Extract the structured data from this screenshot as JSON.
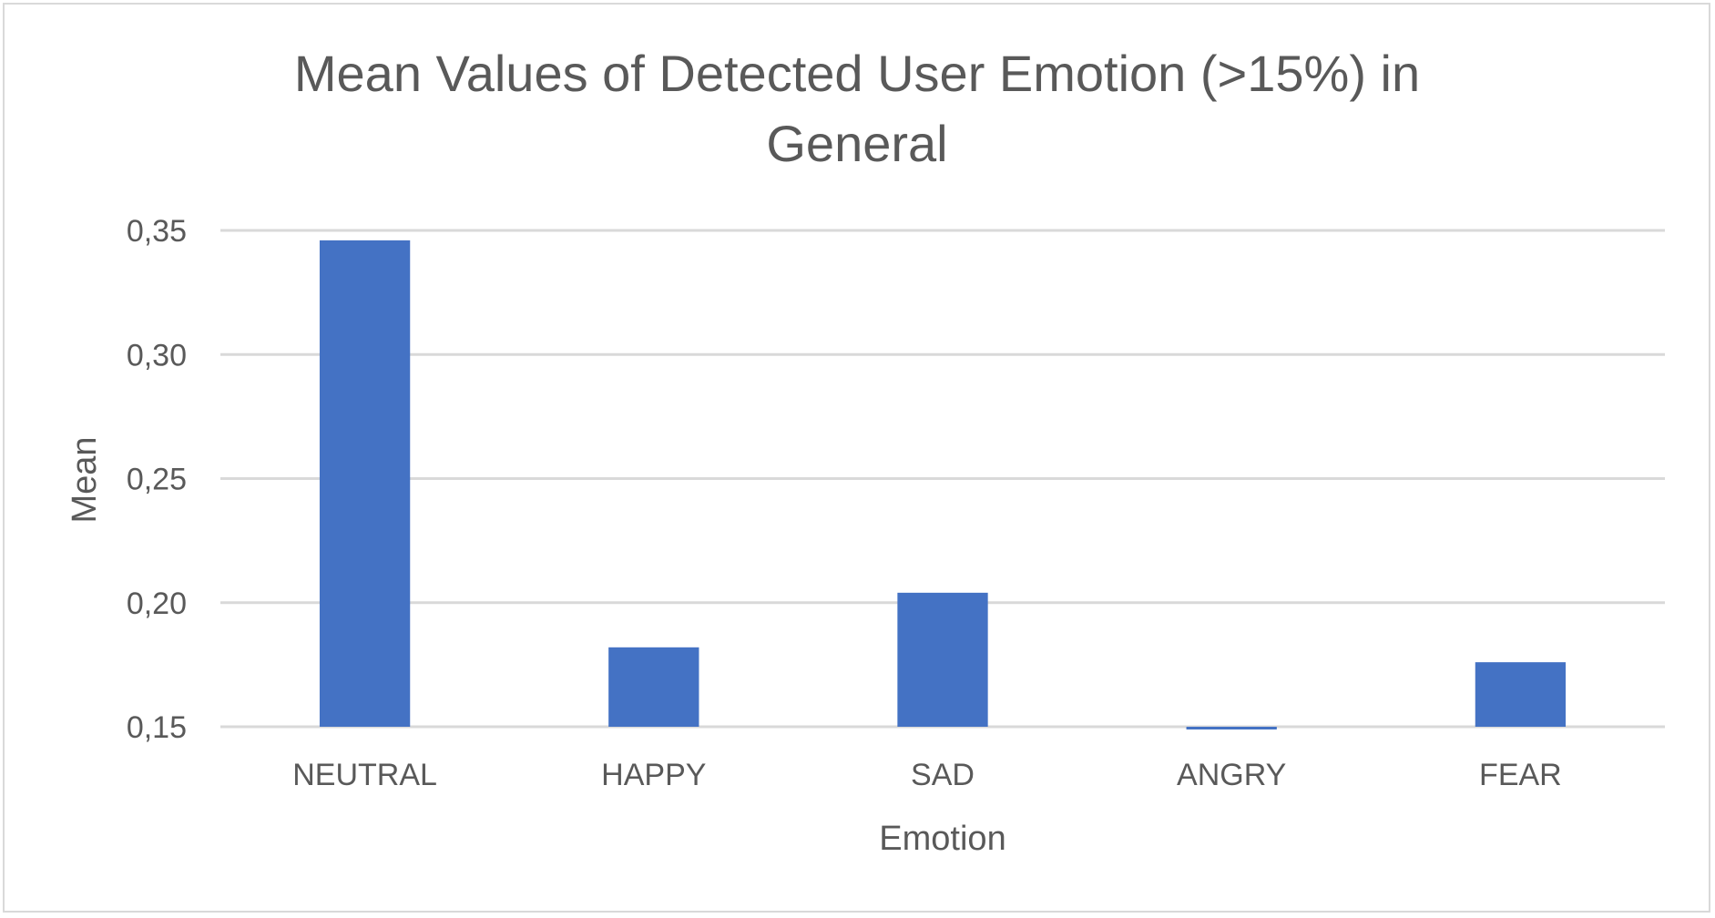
{
  "chart_data": {
    "type": "bar",
    "title_lines": [
      "Mean Values of Detected User Emotion (>15%) in",
      "General"
    ],
    "xlabel": "Emotion",
    "ylabel": "Mean",
    "categories": [
      "NEUTRAL",
      "HAPPY",
      "SAD",
      "ANGRY",
      "FEAR"
    ],
    "values": [
      0.346,
      0.182,
      0.204,
      0.149,
      0.176
    ],
    "ylim": [
      0.15,
      0.35
    ],
    "yticks": [
      0.15,
      0.2,
      0.25,
      0.3,
      0.35
    ],
    "ytick_labels": [
      "0,15",
      "0,20",
      "0,25",
      "0,30",
      "0,35"
    ],
    "grid": true,
    "legend": "none",
    "bar_color": "#4472C4",
    "gridline_color": "#d9d9d9",
    "text_color": "#595959"
  }
}
